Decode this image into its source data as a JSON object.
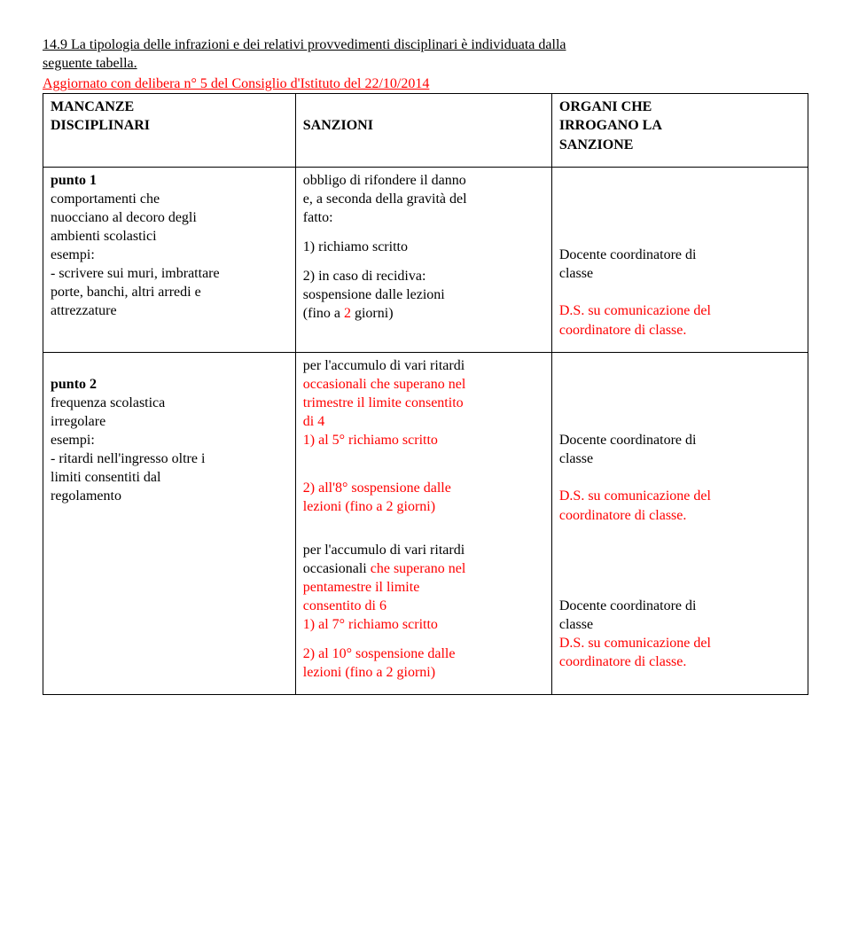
{
  "intro": {
    "line1": "14.9 La tipologia delle infrazioni e dei relativi provvedimenti disciplinari è individuata dalla",
    "line2": "seguente tabella.",
    "subtitle": "Aggiornato con delibera n° 5 del Consiglio d'Istituto del 22/10/2014"
  },
  "header": {
    "col1a": "MANCANZE",
    "col1b": "DISCIPLINARI",
    "col2": "SANZIONI",
    "col3a": "ORGANI CHE",
    "col3b": "IRROGANO LA",
    "col3c": "SANZIONE"
  },
  "row1": {
    "left_title": "punto 1",
    "left_l1": "comportamenti che",
    "left_l2": "nuocciano al decoro degli",
    "left_l3": "ambienti scolastici",
    "left_l4": "esempi:",
    "left_l5": "- scrivere sui muri, imbrattare",
    "left_l6": "porte, banchi, altri arredi e",
    "left_l7": "attrezzature",
    "mid_l1": "obbligo di rifondere il danno",
    "mid_l2": "e, a seconda della gravità del",
    "mid_l3": "fatto:",
    "mid_l4": "1) richiamo scritto",
    "mid_l5": "2) in caso di recidiva:",
    "mid_l6": "sospensione dalle lezioni",
    "mid_l7a": "(fino a ",
    "mid_l7b": "2",
    "mid_l7c": " giorni)",
    "right_l1": "Docente coordinatore di",
    "right_l2": "classe",
    "right_l3": "D.S. su comunicazione del",
    "right_l4": "coordinatore di classe."
  },
  "row2": {
    "left_title": "punto 2",
    "left_l1": "frequenza scolastica",
    "left_l2": "irregolare",
    "left_l3": "esempi:",
    "left_l4": "- ritardi nell'ingresso oltre i",
    "left_l5": "limiti consentiti dal",
    "left_l6": "regolamento",
    "mid_l1": "per l'accumulo di vari ritardi",
    "mid_l2": "occasionali che superano nel",
    "mid_l3": "trimestre il limite consentito",
    "mid_l4": "di 4",
    "mid_l5": " 1) al 5° richiamo scritto",
    "mid_l6": " 2) all'8° sospensione dalle",
    "mid_l7a": "lezioni (fino a ",
    "mid_l7b": "2",
    "mid_l7c": " giorni)",
    "right_l1": "Docente coordinatore di",
    "right_l2": "classe",
    "right_l3": "D.S. su comunicazione del",
    "right_l4": "coordinatore di classe."
  },
  "row3": {
    "mid_l1": "per l'accumulo di vari ritardi",
    "mid_l2": "occasionali che superano nel",
    "mid_l3": "pentamestre il limite",
    "mid_l4": "consentito di 6",
    "mid_l5": " 1) al 7° richiamo scritto",
    "mid_l6": " 2) al 10° sospensione dalle",
    "mid_l7a": "lezioni (fino a ",
    "mid_l7b": "2",
    "mid_l7c": " giorni)",
    "right_l1": "Docente coordinatore di",
    "right_l2": "classe",
    "right_l3": "D.S. su comunicazione del",
    "right_l4": "coordinatore di classe."
  }
}
